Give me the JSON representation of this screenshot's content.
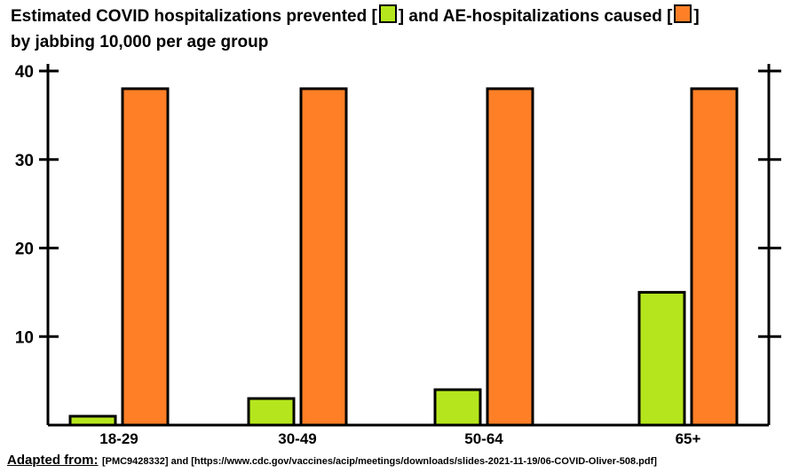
{
  "title": {
    "part1": "Estimated COVID hospitalizations prevented [",
    "part2": "] and AE-hospitalizations caused [",
    "part3": "]",
    "line2": "by jabbing 10,000 per age group"
  },
  "colors": {
    "prevented": "#b5e61d",
    "caused": "#ff7f27",
    "axis": "#000000"
  },
  "chart_data": {
    "type": "bar",
    "categories": [
      "18-29",
      "30-49",
      "50-64",
      "65+"
    ],
    "series": [
      {
        "name": "COVID hospitalizations prevented",
        "values": [
          1,
          3,
          4,
          15
        ]
      },
      {
        "name": "AE-hospitalizations caused",
        "values": [
          38,
          38,
          38,
          38
        ]
      }
    ],
    "ylim": [
      0,
      40
    ],
    "yticks": [
      10,
      20,
      30,
      40
    ],
    "ytick_labels": [
      "10",
      "20",
      "30",
      "40"
    ],
    "grid": false
  },
  "source": {
    "label": "Adapted from:",
    "text": "[PMC9428332] and [https://www.cdc.gov/vaccines/acip/meetings/downloads/slides-2021-11-19/06-COVID-Oliver-508.pdf]"
  }
}
